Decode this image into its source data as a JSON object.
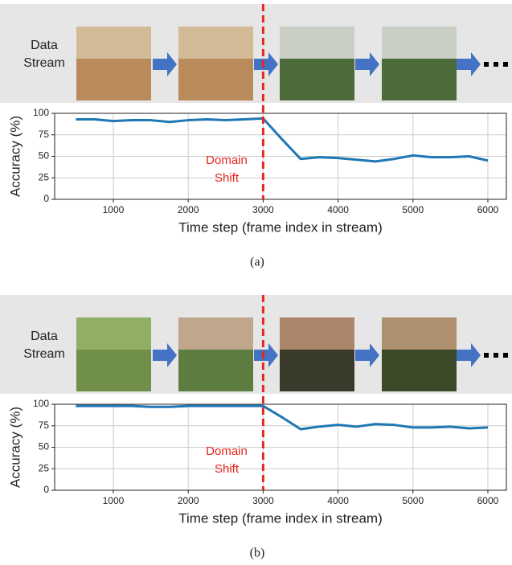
{
  "chart_data": [
    {
      "type": "line",
      "caption": "(a)",
      "banner_label": [
        "Data",
        "Stream"
      ],
      "annotation": [
        "Domain",
        "Shift"
      ],
      "domain_shift_x": 3000,
      "ylabel": "Accuracy (%)",
      "xlabel": "Time step (frame index in stream)",
      "x": [
        500,
        750,
        1000,
        1250,
        1500,
        1750,
        2000,
        2250,
        2500,
        2750,
        3000,
        3250,
        3500,
        3750,
        4000,
        4250,
        4500,
        4750,
        5000,
        5250,
        5500,
        5750,
        6000
      ],
      "values": [
        93,
        93,
        91,
        92,
        92,
        90,
        92,
        93,
        92,
        93,
        94,
        70,
        47,
        49,
        48,
        46,
        44,
        47,
        51,
        49,
        49,
        50,
        45
      ],
      "color": "#1f77b4",
      "xlim": [
        217,
        6247
      ],
      "ylim": [
        0,
        100
      ],
      "xticks": [
        1000,
        2000,
        3000,
        4000,
        5000,
        6000
      ],
      "yticks": [
        0,
        25,
        50,
        75,
        100
      ],
      "grid": true
    },
    {
      "type": "line",
      "caption": "(b)",
      "banner_label": [
        "Data",
        "Stream"
      ],
      "annotation": [
        "Domain",
        "Shift"
      ],
      "domain_shift_x": 3000,
      "ylabel": "Accuracy (%)",
      "xlabel": "Time step (frame index in stream)",
      "x": [
        500,
        750,
        1000,
        1250,
        1500,
        1750,
        2000,
        2250,
        2500,
        2750,
        3000,
        3250,
        3500,
        3750,
        4000,
        4250,
        4500,
        4750,
        5000,
        5250,
        5500,
        5750,
        6000
      ],
      "values": [
        98,
        98,
        98,
        98,
        97,
        97,
        98,
        98,
        98,
        98,
        98,
        85,
        71,
        74,
        76,
        74,
        77,
        76,
        73,
        73,
        74,
        72,
        73
      ],
      "color": "#1f77b4",
      "xlim": [
        217,
        6247
      ],
      "ylim": [
        0,
        100
      ],
      "xticks": [
        1000,
        2000,
        3000,
        4000,
        5000,
        6000
      ],
      "yticks": [
        0,
        25,
        50,
        75,
        100
      ],
      "grid": true
    }
  ]
}
